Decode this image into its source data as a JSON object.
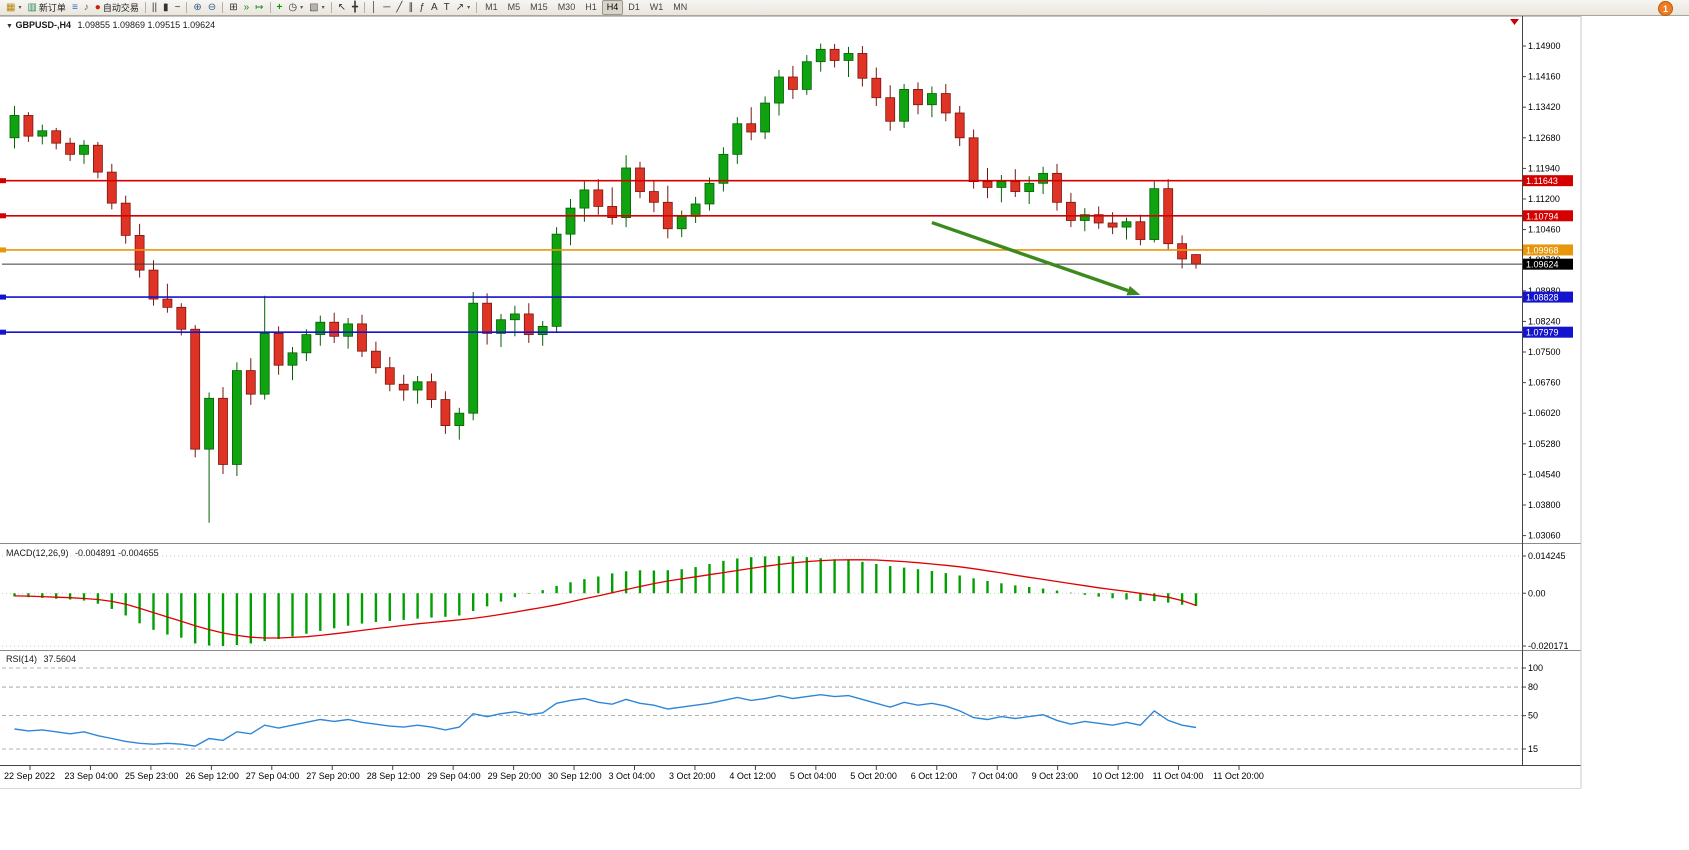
{
  "icons": {
    "dropdown_caret": "▾",
    "symbol_collapse": "▼"
  },
  "toolbar": {
    "notification_count": "1",
    "buttons": [
      {
        "name": "new-chart-button",
        "glyph": "▦",
        "color": "#B8860B",
        "dd": true
      },
      {
        "name": "new-order-button",
        "glyph": "▥",
        "color": "#2E8B57",
        "label": "新订单"
      },
      {
        "name": "market-watch-button",
        "glyph": "≡",
        "color": "#2E6BC8"
      },
      {
        "name": "sound-button",
        "glyph": "♪",
        "color": "#666666"
      },
      {
        "name": "autotrading-button",
        "glyph": "●",
        "color": "#CC2200",
        "label": "自动交易"
      },
      {
        "sep": true
      },
      {
        "name": "bar-chart-button",
        "glyph": "||",
        "color": "#333333"
      },
      {
        "name": "candlestick-chart-button",
        "glyph": "▮",
        "color": "#333333"
      },
      {
        "name": "line-chart-button",
        "glyph": "~",
        "color": "#333333"
      },
      {
        "sep": true
      },
      {
        "name": "zoom-in-button",
        "glyph": "⊕",
        "color": "#33608C"
      },
      {
        "name": "zoom-out-button",
        "glyph": "⊖",
        "color": "#33608C"
      },
      {
        "sep": true
      },
      {
        "name": "tile-windows-button",
        "glyph": "⊞",
        "color": "#333333"
      },
      {
        "name": "auto-scroll-button",
        "glyph": "»",
        "color": "#1A8A1A"
      },
      {
        "name": "chart-shift-button",
        "glyph": "↦",
        "color": "#1A8A1A"
      },
      {
        "sep": true
      },
      {
        "name": "indicators-button",
        "glyph": "+",
        "color": "#00A000",
        "bold": true
      },
      {
        "name": "periods-button",
        "glyph": "◷",
        "color": "#333333",
        "dd": true
      },
      {
        "name": "templates-button",
        "glyph": "▧",
        "color": "#555555",
        "dd": true
      },
      {
        "sep": true
      },
      {
        "name": "cursor-button",
        "glyph": "↖",
        "color": "#333333"
      },
      {
        "name": "crosshair-button",
        "glyph": "╋",
        "color": "#333333"
      },
      {
        "sep": true
      },
      {
        "name": "vertical-line-button",
        "glyph": "│",
        "color": "#333333"
      },
      {
        "name": "horizontal-line-button",
        "glyph": "─",
        "color": "#333333"
      },
      {
        "name": "trendline-button",
        "glyph": "╱",
        "color": "#333333"
      },
      {
        "name": "channel-button",
        "glyph": "∥",
        "color": "#333333"
      },
      {
        "name": "fibonacci-button",
        "glyph": "ƒ",
        "color": "#333333"
      },
      {
        "name": "text-button",
        "glyph": "A",
        "color": "#333333"
      },
      {
        "name": "label-button",
        "glyph": "T",
        "color": "#333333"
      },
      {
        "name": "arrows-button",
        "glyph": "↗",
        "color": "#333333",
        "dd": true
      },
      {
        "sep": true
      }
    ],
    "timeframes": {
      "items": [
        "M1",
        "M5",
        "M15",
        "M30",
        "H1",
        "H4",
        "D1",
        "W1",
        "MN"
      ],
      "active": "H4"
    }
  },
  "chart": {
    "symbol_period": "GBPUSD-,H4",
    "ohlc": "1.09855 1.09869 1.09515 1.09624",
    "macd_label": "MACD(12,26,9)",
    "macd_values": "-0.004891 -0.004655",
    "rsi_label": "RSI(14)",
    "rsi_value": "37.5604"
  },
  "chart_data": {
    "type": "candlestick",
    "symbol": "GBPUSD-",
    "timeframe": "H4",
    "current_bar": {
      "open": 1.09855,
      "high": 1.09869,
      "low": 1.09515,
      "close": 1.09624
    },
    "up_color": "#0FA30F",
    "down_color": "#DF3425",
    "price_axis_labels": [
      "1.14900",
      "1.14160",
      "1.13420",
      "1.12680",
      "1.11940",
      "1.11200",
      "1.10460",
      "1.09720",
      "1.08980",
      "1.08240",
      "1.07500",
      "1.06760",
      "1.06020",
      "1.05280",
      "1.04540",
      "1.03800",
      "1.03060"
    ],
    "time_labels": [
      "22 Sep 2022",
      "23 Sep 04:00",
      "25 Sep 23:00",
      "26 Sep 12:00",
      "27 Sep 04:00",
      "27 Sep 20:00",
      "28 Sep 12:00",
      "29 Sep 04:00",
      "29 Sep 20:00",
      "30 Sep 12:00",
      "3 Oct 04:00",
      "3 Oct 20:00",
      "4 Oct 12:00",
      "5 Oct 04:00",
      "5 Oct 20:00",
      "6 Oct 12:00",
      "7 Oct 04:00",
      "9 Oct 23:00",
      "10 Oct 12:00",
      "11 Oct 04:00",
      "11 Oct 20:00"
    ],
    "candles": [
      [
        1.1268,
        1.1345,
        1.1242,
        1.1322
      ],
      [
        1.1322,
        1.133,
        1.1258,
        1.1272
      ],
      [
        1.1272,
        1.13,
        1.1252,
        1.1285
      ],
      [
        1.1285,
        1.1292,
        1.124,
        1.1255
      ],
      [
        1.1255,
        1.1268,
        1.1212,
        1.1228
      ],
      [
        1.1228,
        1.1262,
        1.1205,
        1.125
      ],
      [
        1.125,
        1.1258,
        1.117,
        1.1185
      ],
      [
        1.1185,
        1.1205,
        1.1095,
        1.111
      ],
      [
        1.111,
        1.1128,
        1.1012,
        1.1032
      ],
      [
        1.1032,
        1.106,
        1.093,
        1.0948
      ],
      [
        1.0948,
        1.0972,
        1.0862,
        1.0878
      ],
      [
        1.0878,
        1.0915,
        1.0845,
        1.0858
      ],
      [
        1.0858,
        1.0868,
        1.079,
        1.0805
      ],
      [
        1.0805,
        1.0815,
        1.0495,
        1.0515
      ],
      [
        1.0515,
        1.0652,
        1.0337,
        1.0638
      ],
      [
        1.0638,
        1.0665,
        1.0455,
        1.0478
      ],
      [
        1.0478,
        1.0725,
        1.045,
        1.0705
      ],
      [
        1.0705,
        1.0735,
        1.0622,
        1.0648
      ],
      [
        1.0648,
        1.0886,
        1.0635,
        1.0795
      ],
      [
        1.0795,
        1.0812,
        1.0695,
        1.0718
      ],
      [
        1.0718,
        1.0762,
        1.0682,
        1.0748
      ],
      [
        1.0748,
        1.0805,
        1.0728,
        1.0792
      ],
      [
        1.0792,
        1.0838,
        1.0765,
        1.0822
      ],
      [
        1.0822,
        1.0845,
        1.0772,
        1.0788
      ],
      [
        1.0788,
        1.0832,
        1.0758,
        1.0818
      ],
      [
        1.0818,
        1.084,
        1.0738,
        1.0752
      ],
      [
        1.0752,
        1.0775,
        1.0698,
        1.0712
      ],
      [
        1.0712,
        1.0738,
        1.0655,
        1.0672
      ],
      [
        1.0672,
        1.0695,
        1.0632,
        1.0658
      ],
      [
        1.0658,
        1.0692,
        1.0625,
        1.0678
      ],
      [
        1.0678,
        1.0698,
        1.0615,
        1.0635
      ],
      [
        1.0635,
        1.0655,
        1.0552,
        1.0572
      ],
      [
        1.0572,
        1.0615,
        1.0538,
        1.0602
      ],
      [
        1.0602,
        1.0895,
        1.0585,
        1.0868
      ],
      [
        1.0868,
        1.0892,
        1.0768,
        1.0795
      ],
      [
        1.0795,
        1.0842,
        1.0762,
        1.0828
      ],
      [
        1.0828,
        1.0862,
        1.0788,
        1.0842
      ],
      [
        1.0842,
        1.0868,
        1.0772,
        1.0792
      ],
      [
        1.0792,
        1.0825,
        1.0765,
        1.0812
      ],
      [
        1.0812,
        1.1052,
        1.0798,
        1.1035
      ],
      [
        1.1035,
        1.112,
        1.1008,
        1.1098
      ],
      [
        1.1098,
        1.1162,
        1.1065,
        1.1142
      ],
      [
        1.1142,
        1.1168,
        1.1082,
        1.1102
      ],
      [
        1.1102,
        1.1148,
        1.1058,
        1.1075
      ],
      [
        1.1075,
        1.1226,
        1.1052,
        1.1195
      ],
      [
        1.1195,
        1.121,
        1.1122,
        1.1138
      ],
      [
        1.1138,
        1.1165,
        1.1088,
        1.1112
      ],
      [
        1.1112,
        1.1152,
        1.1025,
        1.1048
      ],
      [
        1.1048,
        1.1092,
        1.1028,
        1.1078
      ],
      [
        1.1078,
        1.1125,
        1.1062,
        1.1108
      ],
      [
        1.1108,
        1.1172,
        1.1092,
        1.1158
      ],
      [
        1.1158,
        1.1245,
        1.1138,
        1.1228
      ],
      [
        1.1228,
        1.1318,
        1.1205,
        1.1302
      ],
      [
        1.1302,
        1.1342,
        1.1262,
        1.1282
      ],
      [
        1.1282,
        1.1368,
        1.1265,
        1.1352
      ],
      [
        1.1352,
        1.1432,
        1.1322,
        1.1415
      ],
      [
        1.1415,
        1.1442,
        1.1362,
        1.1385
      ],
      [
        1.1385,
        1.1468,
        1.1372,
        1.1452
      ],
      [
        1.1452,
        1.1496,
        1.1428,
        1.1482
      ],
      [
        1.1482,
        1.1495,
        1.1438,
        1.1455
      ],
      [
        1.1455,
        1.1488,
        1.1415,
        1.1472
      ],
      [
        1.1472,
        1.149,
        1.1392,
        1.1412
      ],
      [
        1.1412,
        1.1438,
        1.1345,
        1.1365
      ],
      [
        1.1365,
        1.1395,
        1.1285,
        1.1308
      ],
      [
        1.1308,
        1.1398,
        1.1292,
        1.1385
      ],
      [
        1.1385,
        1.1402,
        1.1325,
        1.1348
      ],
      [
        1.1348,
        1.1392,
        1.1318,
        1.1375
      ],
      [
        1.1375,
        1.1398,
        1.1308,
        1.1328
      ],
      [
        1.1328,
        1.1345,
        1.1248,
        1.1268
      ],
      [
        1.1268,
        1.1288,
        1.1145,
        1.1162
      ],
      [
        1.1162,
        1.1195,
        1.1122,
        1.1148
      ],
      [
        1.1148,
        1.1178,
        1.1112,
        1.1162
      ],
      [
        1.1162,
        1.1192,
        1.1125,
        1.1138
      ],
      [
        1.1138,
        1.1175,
        1.1108,
        1.1158
      ],
      [
        1.1158,
        1.1198,
        1.1132,
        1.1182
      ],
      [
        1.1182,
        1.1205,
        1.1092,
        1.1112
      ],
      [
        1.1112,
        1.1135,
        1.1052,
        1.1068
      ],
      [
        1.1068,
        1.1098,
        1.1042,
        1.1082
      ],
      [
        1.1082,
        1.1102,
        1.1048,
        1.1062
      ],
      [
        1.1062,
        1.1088,
        1.1035,
        1.1052
      ],
      [
        1.1052,
        1.1075,
        1.1022,
        1.1065
      ],
      [
        1.1065,
        1.1082,
        1.1008,
        1.1022
      ],
      [
        1.1022,
        1.1162,
        1.1015,
        1.1145
      ],
      [
        1.1145,
        1.1168,
        1.0995,
        1.1012
      ],
      [
        1.1012,
        1.1032,
        1.0952,
        1.0975
      ],
      [
        1.09855,
        1.09869,
        1.09515,
        1.09624
      ]
    ],
    "hlines": [
      {
        "price": 1.11643,
        "label": "1.11643",
        "color": "#D40000"
      },
      {
        "price": 1.10794,
        "label": "1.10794",
        "color": "#D40000"
      },
      {
        "price": 1.09968,
        "label": "1.09968",
        "color": "#E8960A"
      },
      {
        "price": 1.08828,
        "label": "1.08828",
        "color": "#1414CC"
      },
      {
        "price": 1.07979,
        "label": "1.07979",
        "color": "#1414CC"
      }
    ],
    "price_line": {
      "price": 1.09624,
      "label": "1.09624",
      "color": "#3a3a3a",
      "tag_bg": "#000000"
    },
    "arrow": {
      "from_index": 66,
      "from_price": 1.1063,
      "to_index": 81,
      "to_price": 1.0888,
      "color": "#3C8A1E"
    },
    "macd": {
      "axis_labels": [
        "0.014245",
        "0.00",
        "-0.020171"
      ],
      "axis_values": [
        0.014245,
        0,
        -0.020171
      ],
      "histogram_color": "#00A000",
      "signal_color": "#E00000",
      "histogram": [
        -0.0012,
        -0.0015,
        -0.0018,
        -0.0021,
        -0.0024,
        -0.0028,
        -0.004,
        -0.006,
        -0.0085,
        -0.0115,
        -0.014,
        -0.0158,
        -0.017,
        -0.0192,
        -0.02,
        -0.0202,
        -0.0198,
        -0.0192,
        -0.0183,
        -0.0175,
        -0.0165,
        -0.0155,
        -0.0144,
        -0.0134,
        -0.0124,
        -0.0116,
        -0.011,
        -0.0106,
        -0.0102,
        -0.0097,
        -0.0093,
        -0.009,
        -0.0085,
        -0.0068,
        -0.005,
        -0.0032,
        -0.0015,
        -0.0002,
        0.0012,
        0.0028,
        0.0042,
        0.0054,
        0.0064,
        0.0076,
        0.0084,
        0.0088,
        0.0087,
        0.0088,
        0.0092,
        0.01,
        0.0112,
        0.0124,
        0.0133,
        0.0138,
        0.0141,
        0.0142,
        0.0141,
        0.0138,
        0.0134,
        0.013,
        0.0126,
        0.012,
        0.0112,
        0.0104,
        0.0098,
        0.0092,
        0.0085,
        0.0077,
        0.0068,
        0.0057,
        0.0047,
        0.0038,
        0.003,
        0.0024,
        0.0018,
        0.001,
        0.0002,
        -0.0006,
        -0.0013,
        -0.0019,
        -0.0024,
        -0.003,
        -0.003,
        -0.0036,
        -0.0044,
        -0.004891
      ],
      "signal": [
        -0.001,
        -0.0011,
        -0.0013,
        -0.0015,
        -0.0017,
        -0.002,
        -0.0024,
        -0.0031,
        -0.0042,
        -0.0057,
        -0.0074,
        -0.0091,
        -0.0107,
        -0.0124,
        -0.0139,
        -0.0152,
        -0.0161,
        -0.0168,
        -0.0171,
        -0.0171,
        -0.0169,
        -0.0166,
        -0.0161,
        -0.0155,
        -0.0149,
        -0.0142,
        -0.0135,
        -0.0129,
        -0.0123,
        -0.0117,
        -0.0112,
        -0.0107,
        -0.0102,
        -0.0096,
        -0.0089,
        -0.0081,
        -0.0072,
        -0.0063,
        -0.0054,
        -0.0044,
        -0.0033,
        -0.0021,
        -0.001,
        0.0002,
        0.0014,
        0.0026,
        0.0037,
        0.0047,
        0.0055,
        0.0063,
        0.0071,
        0.0079,
        0.0087,
        0.0095,
        0.0103,
        0.011,
        0.0116,
        0.0121,
        0.0125,
        0.0127,
        0.0128,
        0.0128,
        0.0127,
        0.0124,
        0.0121,
        0.0117,
        0.0112,
        0.0107,
        0.0101,
        0.0094,
        0.0086,
        0.0078,
        0.0069,
        0.0061,
        0.0053,
        0.0045,
        0.0037,
        0.0029,
        0.0021,
        0.0014,
        0.0007,
        0.0,
        -0.0008,
        -0.0015,
        -0.0028,
        -0.004655
      ]
    },
    "rsi": {
      "levels": [
        100,
        80,
        50,
        15
      ],
      "line_color": "#2E86D8",
      "values": [
        36,
        34,
        35,
        33,
        31,
        33,
        29,
        26,
        23,
        21,
        20,
        21,
        20,
        18,
        26,
        24,
        33,
        31,
        40,
        37,
        40,
        43,
        46,
        44,
        46,
        43,
        41,
        39,
        38,
        40,
        38,
        35,
        38,
        52,
        49,
        52,
        54,
        51,
        53,
        63,
        66,
        68,
        64,
        62,
        67,
        63,
        61,
        57,
        59,
        61,
        63,
        66,
        69,
        66,
        68,
        71,
        68,
        70,
        72,
        70,
        71,
        67,
        63,
        59,
        64,
        61,
        63,
        60,
        55,
        48,
        46,
        49,
        47,
        49,
        51,
        45,
        41,
        44,
        42,
        40,
        43,
        40,
        55,
        45,
        40,
        37.5604
      ]
    }
  }
}
